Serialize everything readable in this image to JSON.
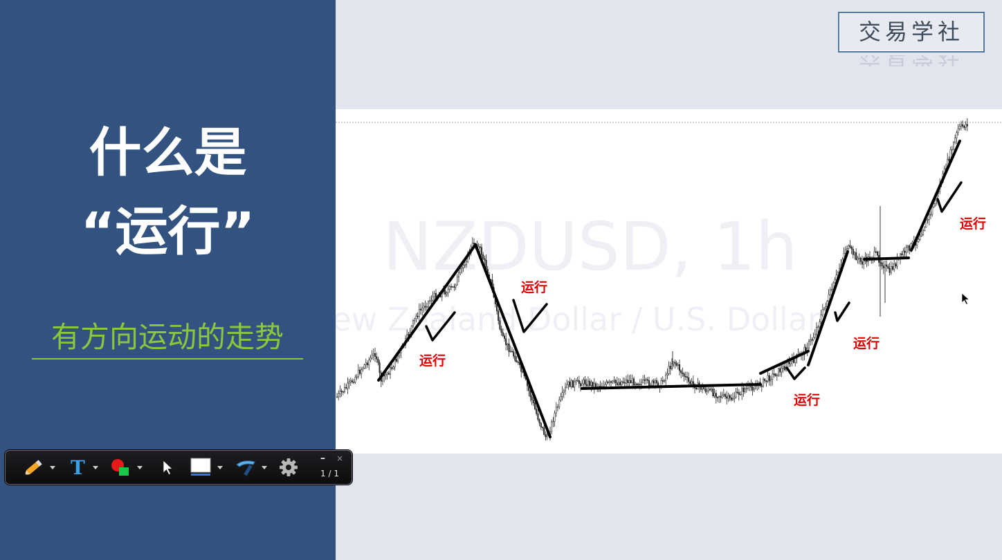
{
  "slide": {
    "title_line1": "什么是",
    "title_line2": "“运行”",
    "subtitle": "有方向运动的走势",
    "logo": "交易学社"
  },
  "chart": {
    "watermark_symbol": "NZDUSD, 1h",
    "watermark_description": "New Zealand Dollar / U.S. Dollar",
    "annotation_label": "运行",
    "annotations": [
      "运行",
      "运行",
      "运行",
      "运行",
      "运行"
    ]
  },
  "toolbar": {
    "tools": [
      "pen-tool",
      "text-tool",
      "shape-color-tool",
      "pointer-tool",
      "background-tool",
      "highlighter-tool",
      "settings"
    ],
    "page_indicator": "1 / 1",
    "minimize": "–",
    "close": "×"
  },
  "colors": {
    "left_panel": "#32537f",
    "subtitle_green": "#8cc63f",
    "annotation_red": "#e00000",
    "chart_background": "#ffffff",
    "page_background": "#e2e4ee"
  }
}
